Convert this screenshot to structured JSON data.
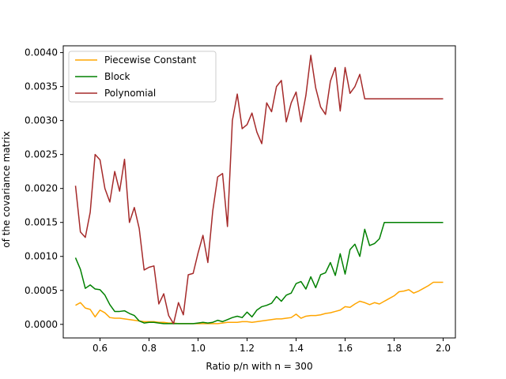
{
  "chart_data": {
    "type": "line",
    "xlabel": "Ratio p/n with n = 300",
    "ylabel": "of the covariance matrix",
    "xlim": [
      0.45,
      2.05
    ],
    "ylim": [
      -0.0002,
      0.0041
    ],
    "xticks": [
      0.6,
      0.8,
      1.0,
      1.2,
      1.4,
      1.6,
      1.8,
      2.0
    ],
    "xtick_labels": [
      "0.6",
      "0.8",
      "1.0",
      "1.2",
      "1.4",
      "1.6",
      "1.8",
      "2.0"
    ],
    "yticks": [
      0.0,
      0.0005,
      0.001,
      0.0015,
      0.002,
      0.0025,
      0.003,
      0.0035,
      0.004
    ],
    "ytick_labels": [
      "0.0000",
      "0.0005",
      "0.0010",
      "0.0015",
      "0.0020",
      "0.0025",
      "0.0030",
      "0.0035",
      "0.0040"
    ],
    "grid": false,
    "legend_position": "top-left",
    "x": [
      0.5,
      0.52,
      0.54,
      0.56,
      0.58,
      0.6,
      0.62,
      0.64,
      0.66,
      0.68,
      0.7,
      0.72,
      0.74,
      0.76,
      0.78,
      0.8,
      0.82,
      0.84,
      0.86,
      0.88,
      0.9,
      0.92,
      0.94,
      0.96,
      0.98,
      1.0,
      1.02,
      1.04,
      1.06,
      1.08,
      1.1,
      1.12,
      1.14,
      1.16,
      1.18,
      1.2,
      1.22,
      1.24,
      1.26,
      1.28,
      1.3,
      1.32,
      1.34,
      1.36,
      1.38,
      1.4,
      1.42,
      1.44,
      1.46,
      1.48,
      1.5,
      1.52,
      1.54,
      1.56,
      1.58,
      1.6,
      1.62,
      1.64,
      1.66,
      1.68,
      1.7,
      1.72,
      1.74,
      1.76,
      1.78,
      1.8,
      1.82,
      1.84,
      1.86,
      1.88,
      1.9,
      1.92,
      1.94,
      1.96,
      1.98,
      2.0
    ],
    "series": [
      {
        "name": "Piecewise Constant",
        "color": "#ffa500",
        "values": [
          0.00028,
          0.00032,
          0.00024,
          0.00022,
          0.00011,
          0.00021,
          0.00017,
          0.0001,
          9e-05,
          9e-05,
          8e-05,
          7e-05,
          6e-05,
          5e-05,
          4e-05,
          4e-05,
          4e-05,
          3e-05,
          3e-05,
          2e-05,
          2e-05,
          1e-05,
          1e-05,
          1e-05,
          1e-05,
          1e-05,
          1e-05,
          1e-05,
          1e-05,
          1e-05,
          2e-05,
          3e-05,
          3e-05,
          3e-05,
          4e-05,
          4e-05,
          3e-05,
          4e-05,
          5e-05,
          6e-05,
          7e-05,
          8e-05,
          8e-05,
          9e-05,
          0.0001,
          0.00015,
          9e-05,
          0.00012,
          0.00013,
          0.00013,
          0.00014,
          0.00016,
          0.00017,
          0.00019,
          0.00021,
          0.00026,
          0.00025,
          0.0003,
          0.00034,
          0.00032,
          0.00029,
          0.00032,
          0.0003,
          0.00034,
          0.00038,
          0.00042,
          0.00048,
          0.00049,
          0.00051,
          0.00046,
          0.00049,
          0.00053,
          0.00057,
          0.00062,
          0.00062,
          0.00062
        ]
      },
      {
        "name": "Block",
        "color": "#008000",
        "values": [
          0.00098,
          0.00081,
          0.00053,
          0.00058,
          0.00052,
          0.00051,
          0.00043,
          0.00029,
          0.00019,
          0.00019,
          0.0002,
          0.00016,
          0.00013,
          5e-05,
          2e-05,
          3e-05,
          3e-05,
          2e-05,
          1e-05,
          1e-05,
          1e-05,
          1e-05,
          1e-05,
          1e-05,
          1e-05,
          2e-05,
          3e-05,
          2e-05,
          3e-05,
          6e-05,
          4e-05,
          7e-05,
          0.0001,
          0.00012,
          0.0001,
          0.00018,
          0.00011,
          0.00021,
          0.00026,
          0.00028,
          0.00031,
          0.00041,
          0.00034,
          0.00043,
          0.00046,
          0.0006,
          0.00063,
          0.00052,
          0.0007,
          0.00054,
          0.00073,
          0.00076,
          0.00091,
          0.00072,
          0.00104,
          0.00074,
          0.0011,
          0.00118,
          0.001,
          0.0014,
          0.00116,
          0.00119,
          0.00126,
          0.0015,
          0.0015,
          0.0015,
          0.0015,
          0.0015,
          0.0015,
          0.0015,
          0.0015,
          0.0015,
          0.0015,
          0.0015,
          0.0015,
          0.0015
        ]
      },
      {
        "name": "Polynomial",
        "color": "#a52a2a",
        "values": [
          0.00204,
          0.00136,
          0.00128,
          0.00165,
          0.0025,
          0.00242,
          0.002,
          0.0018,
          0.00225,
          0.00196,
          0.00243,
          0.0015,
          0.00172,
          0.00141,
          0.0008,
          0.00084,
          0.00086,
          0.0003,
          0.00045,
          0.00013,
          1e-05,
          0.00032,
          0.00014,
          0.00073,
          0.00075,
          0.00105,
          0.00131,
          0.00091,
          0.00167,
          0.00217,
          0.00222,
          0.00144,
          0.003,
          0.00339,
          0.00288,
          0.00294,
          0.00311,
          0.00283,
          0.00266,
          0.00326,
          0.00313,
          0.0035,
          0.00359,
          0.00298,
          0.00326,
          0.00342,
          0.00298,
          0.00337,
          0.00396,
          0.00348,
          0.0032,
          0.00309,
          0.00358,
          0.00378,
          0.00314,
          0.00378,
          0.0034,
          0.0035,
          0.00368,
          0.00332,
          0.00332,
          0.00332,
          0.00332,
          0.00332,
          0.00332,
          0.00332,
          0.00332,
          0.00332,
          0.00332,
          0.00332,
          0.00332,
          0.00332,
          0.00332,
          0.00332,
          0.00332,
          0.00332
        ]
      }
    ]
  }
}
